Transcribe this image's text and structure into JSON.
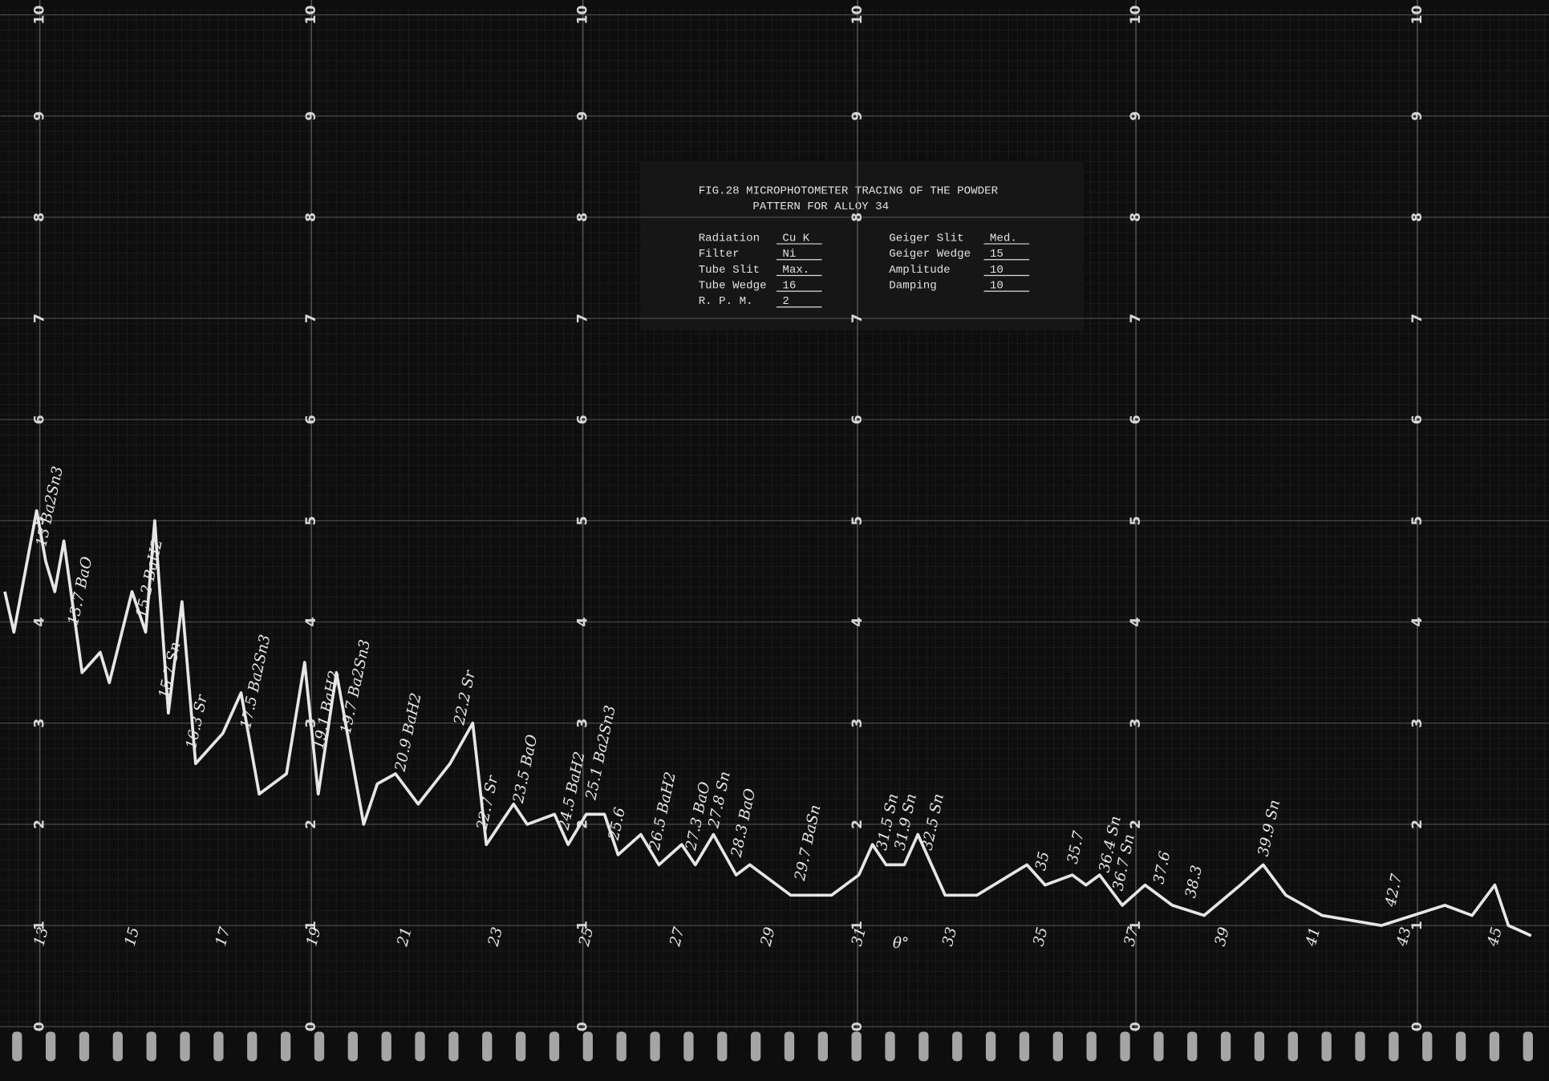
{
  "chart_data": {
    "type": "line",
    "caption": {
      "title": "FIG.28 MICROPHOTOMETER TRACING OF THE POWDER",
      "title_line2": "PATTERN FOR ALLOY 34",
      "fields": [
        {
          "name": "Radiation",
          "value": "Cu K"
        },
        {
          "name": "Filter",
          "value": "Ni"
        },
        {
          "name": "Tube Slit",
          "value": "Max."
        },
        {
          "name": "Tube Wedge",
          "value": "16"
        },
        {
          "name": "R. P. M.",
          "value": "2"
        },
        {
          "name": "Geiger Slit",
          "value": "Med."
        },
        {
          "name": "Geiger Wedge",
          "value": "15"
        },
        {
          "name": "Amplitude",
          "value": "10"
        },
        {
          "name": "Damping",
          "value": "10"
        }
      ]
    },
    "x_label": "θ°",
    "x": [
      12.1,
      12.3,
      12.8,
      13.0,
      13.2,
      13.4,
      13.8,
      14.2,
      14.4,
      14.9,
      15.2,
      15.4,
      15.7,
      16.0,
      16.3,
      16.9,
      17.3,
      17.7,
      18.3,
      18.7,
      19.0,
      19.4,
      20.0,
      20.3,
      20.7,
      21.2,
      21.9,
      22.4,
      22.7,
      23.3,
      23.6,
      24.2,
      24.5,
      24.9,
      25.3,
      25.6,
      26.1,
      26.5,
      27.0,
      27.3,
      27.7,
      28.2,
      28.5,
      29.4,
      30.3,
      30.9,
      31.2,
      31.5,
      31.9,
      32.2,
      32.8,
      33.5,
      34.6,
      35.0,
      35.6,
      35.9,
      36.2,
      36.7,
      37.2,
      37.8,
      38.5,
      39.3,
      39.8,
      40.3,
      41.1,
      42.4,
      43.8,
      44.4,
      44.9,
      45.2,
      45.7
    ],
    "values": [
      4.3,
      3.9,
      5.1,
      4.6,
      4.3,
      4.8,
      3.5,
      3.7,
      3.4,
      4.3,
      3.9,
      5.0,
      3.1,
      4.2,
      2.6,
      2.9,
      3.3,
      2.3,
      2.5,
      3.6,
      2.3,
      3.5,
      2.0,
      2.4,
      2.5,
      2.2,
      2.6,
      3.0,
      1.8,
      2.2,
      2.0,
      2.1,
      1.8,
      2.1,
      2.1,
      1.7,
      1.9,
      1.6,
      1.8,
      1.6,
      1.9,
      1.5,
      1.6,
      1.3,
      1.3,
      1.5,
      1.8,
      1.6,
      1.6,
      1.9,
      1.3,
      1.3,
      1.6,
      1.4,
      1.5,
      1.4,
      1.5,
      1.2,
      1.4,
      1.2,
      1.1,
      1.4,
      1.6,
      1.3,
      1.1,
      1.0,
      1.2,
      1.1,
      1.4,
      1.0,
      0.9
    ],
    "color": "#e6e6e6",
    "xlim": [
      12,
      46
    ],
    "ylim": [
      0,
      10
    ],
    "yticks": [
      0,
      1,
      2,
      3,
      4,
      5,
      6,
      7,
      8,
      9,
      10
    ],
    "xticks": [
      13,
      15,
      17,
      19,
      21,
      23,
      25,
      27,
      29,
      31,
      33,
      35,
      37,
      39,
      41,
      43,
      45
    ],
    "grid": true,
    "annotations": [
      {
        "x": 13,
        "label": "13 Ba2Sn3"
      },
      {
        "x": 13.7,
        "label": "13.7 BaO"
      },
      {
        "x": 15.2,
        "label": "15.2 BaH2"
      },
      {
        "x": 15.7,
        "label": "15.7 Sn"
      },
      {
        "x": 16.3,
        "label": "16.3 Sr"
      },
      {
        "x": 17.5,
        "label": "17.5 Ba2Sn3"
      },
      {
        "x": 19.1,
        "label": "19.1 BaH2"
      },
      {
        "x": 19.7,
        "label": "19.7 Ba2Sn3"
      },
      {
        "x": 20.9,
        "label": "20.9 BaH2"
      },
      {
        "x": 22.2,
        "label": "22.2 Sr"
      },
      {
        "x": 22.7,
        "label": "22.7 Sr"
      },
      {
        "x": 23.5,
        "label": "23.5 BaO"
      },
      {
        "x": 24.5,
        "label": "24.5 BaH2"
      },
      {
        "x": 25.1,
        "label": "25.1 Ba2Sn3"
      },
      {
        "x": 25.6,
        "label": "25.6"
      },
      {
        "x": 26.5,
        "label": "26.5 BaH2"
      },
      {
        "x": 27.3,
        "label": "27.3 BaO"
      },
      {
        "x": 27.8,
        "label": "27.8 Sn"
      },
      {
        "x": 28.3,
        "label": "28.3 BaO"
      },
      {
        "x": 29.7,
        "label": "29.7 BaSn"
      },
      {
        "x": 31.5,
        "label": "31.5 Sn"
      },
      {
        "x": 31.9,
        "label": "31.9 Sn"
      },
      {
        "x": 32.5,
        "label": "32.5 Sn"
      },
      {
        "x": 35,
        "label": "35"
      },
      {
        "x": 35.7,
        "label": "35.7"
      },
      {
        "x": 36.4,
        "label": "36.4 Sn"
      },
      {
        "x": 36.7,
        "label": "36.7 Sn"
      },
      {
        "x": 37.6,
        "label": "37.6"
      },
      {
        "x": 38.3,
        "label": "38.3"
      },
      {
        "x": 39.9,
        "label": "39.9 Sn"
      },
      {
        "x": 42.7,
        "label": "42.7"
      }
    ]
  }
}
